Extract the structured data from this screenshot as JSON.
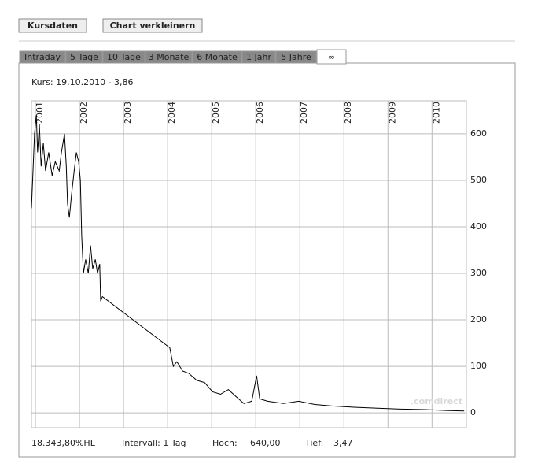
{
  "buttons": [
    "Kursdaten",
    "Chart verkleinern"
  ],
  "tabs": [
    "Intraday",
    "5 Tage",
    "10 Tage",
    "3 Monate",
    "6 Monate",
    "1 Jahr",
    "5 Jahre",
    "∞"
  ],
  "chart_data": {
    "type": "line",
    "subtitle": "Kurs: 19.10.2010 - 3,86",
    "watermark": ".comdirect",
    "color": "#000000",
    "x": [
      2000.91,
      2000.95,
      2000.98,
      2001.02,
      2001.05,
      2001.09,
      2001.13,
      2001.18,
      2001.23,
      2001.3,
      2001.38,
      2001.45,
      2001.54,
      2001.59,
      2001.66,
      2001.7,
      2001.73,
      2001.77,
      2001.82,
      2001.88,
      2001.93,
      2001.98,
      2002.02,
      2002.05,
      2002.09,
      2002.14,
      2002.2,
      2002.25,
      2002.3,
      2002.36,
      2002.41,
      2002.46,
      2002.48,
      2002.52,
      2004.05,
      2004.13,
      2004.21,
      2004.34,
      2004.48,
      2004.66,
      2004.84,
      2005.02,
      2005.2,
      2005.38,
      2005.55,
      2005.73,
      2005.91,
      2006.02,
      2006.09,
      2006.27,
      2006.63,
      2006.98,
      2007.34,
      2007.7,
      2008.23,
      2008.77,
      2009.3,
      2009.84,
      2010.38,
      2010.73
    ],
    "values": [
      440,
      530,
      600,
      640,
      560,
      620,
      530,
      580,
      520,
      560,
      510,
      540,
      520,
      560,
      600,
      530,
      450,
      420,
      470,
      520,
      560,
      540,
      500,
      380,
      300,
      330,
      300,
      360,
      310,
      330,
      300,
      320,
      240,
      250,
      140,
      100,
      110,
      90,
      85,
      70,
      65,
      45,
      40,
      50,
      35,
      20,
      25,
      80,
      30,
      25,
      20,
      25,
      18,
      15,
      12,
      10,
      8,
      7,
      5,
      4
    ],
    "xlim": [
      2000.91,
      2010.78
    ],
    "xticks": [
      2001,
      2002,
      2003,
      2004,
      2005,
      2006,
      2007,
      2008,
      2009,
      2010
    ],
    "ylim": [
      -32,
      671
    ],
    "yticks": [
      0,
      100,
      200,
      300,
      400,
      500,
      600
    ],
    "grid": true
  },
  "footer": {
    "performance": "18.343,80%HL",
    "interval": "Intervall: 1 Tag",
    "high_label": "Hoch:",
    "high": "640,00",
    "low_label": "Tief:",
    "low": "3,47"
  }
}
